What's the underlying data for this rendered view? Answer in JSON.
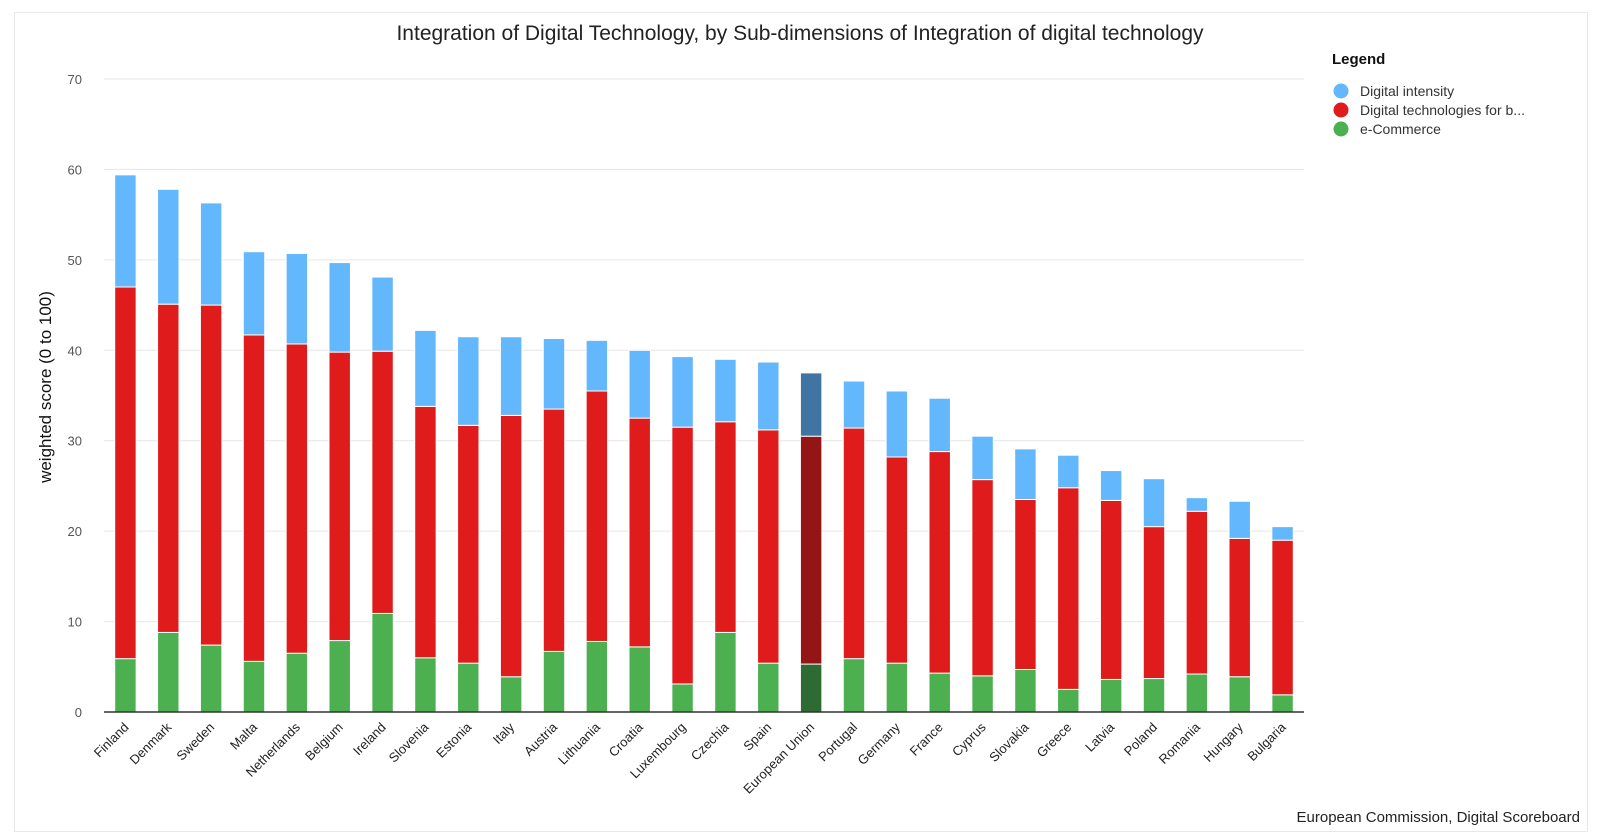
{
  "chart_data": {
    "type": "bar",
    "stacked": true,
    "title": "Integration of Digital Technology, by Sub-dimensions of Integration of digital technology",
    "xlabel": "",
    "ylabel": "weighted score (0 to 100)",
    "ylim": [
      0,
      70
    ],
    "yticks": [
      0,
      10,
      20,
      30,
      40,
      50,
      60,
      70
    ],
    "grid": true,
    "legend_title": "Legend",
    "legend_position": "top-right",
    "credit": "European Commission, Digital Scoreboard",
    "highlight_category": "European Union",
    "categories": [
      "Finland",
      "Denmark",
      "Sweden",
      "Malta",
      "Netherlands",
      "Belgium",
      "Ireland",
      "Slovenia",
      "Estonia",
      "Italy",
      "Austria",
      "Lithuania",
      "Croatia",
      "Luxembourg",
      "Czechia",
      "Spain",
      "European Union",
      "Portugal",
      "Germany",
      "France",
      "Cyprus",
      "Slovakia",
      "Greece",
      "Latvia",
      "Poland",
      "Romania",
      "Hungary",
      "Bulgaria"
    ],
    "series": [
      {
        "name": "e-Commerce",
        "legend_label": "e-Commerce",
        "color": "#4caf50",
        "highlight_color": "#2e6b32",
        "values": [
          5.9,
          8.8,
          7.4,
          5.6,
          6.5,
          7.9,
          10.9,
          6.0,
          5.4,
          3.9,
          6.7,
          7.8,
          7.2,
          3.1,
          8.8,
          5.4,
          5.3,
          5.9,
          5.4,
          4.3,
          4.0,
          4.7,
          2.5,
          3.6,
          3.7,
          4.2,
          3.9,
          1.9
        ]
      },
      {
        "name": "Digital technologies for business",
        "legend_label": "Digital technologies for b...",
        "color": "#e01b1b",
        "highlight_color": "#931516",
        "values": [
          41.1,
          36.3,
          37.6,
          36.1,
          34.2,
          31.9,
          29.0,
          27.8,
          26.3,
          28.9,
          26.8,
          27.7,
          25.3,
          28.4,
          23.3,
          25.8,
          25.2,
          25.5,
          22.8,
          24.5,
          21.7,
          18.8,
          22.3,
          19.8,
          16.8,
          18.0,
          15.3,
          17.1
        ]
      },
      {
        "name": "Digital intensity",
        "legend_label": "Digital intensity",
        "color": "#63b7fc",
        "highlight_color": "#3f74a3",
        "values": [
          12.4,
          12.7,
          11.3,
          9.2,
          10.0,
          9.9,
          8.2,
          8.4,
          9.8,
          8.7,
          7.8,
          5.6,
          7.5,
          7.8,
          6.9,
          7.5,
          7.0,
          5.2,
          7.3,
          5.9,
          4.8,
          5.6,
          3.6,
          3.3,
          5.3,
          1.5,
          4.1,
          1.5
        ]
      }
    ],
    "legend_order": [
      "Digital intensity",
      "Digital technologies for business",
      "e-Commerce"
    ]
  }
}
